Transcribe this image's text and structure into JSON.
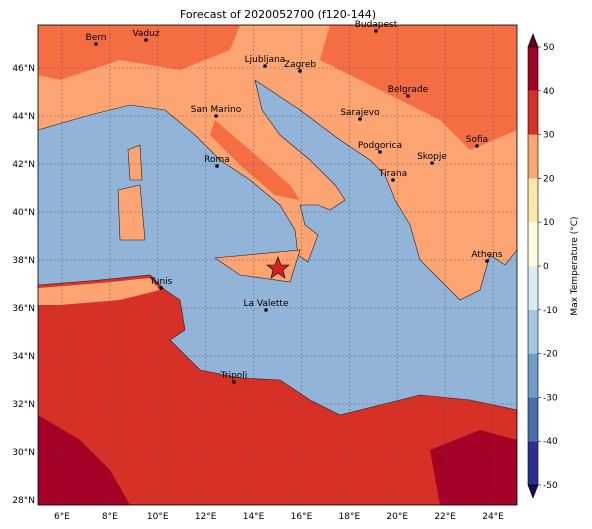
{
  "title": "Forecast of 2020052700 (f120-144)",
  "map": {
    "lon_ticks": [
      "6°E",
      "8°E",
      "10°E",
      "12°E",
      "14°E",
      "16°E",
      "18°E",
      "20°E",
      "22°E",
      "24°E"
    ],
    "lat_ticks": [
      "28°N",
      "30°N",
      "32°N",
      "34°N",
      "36°N",
      "38°N",
      "40°N",
      "42°N",
      "44°N",
      "46°N"
    ],
    "cities": [
      "Bern",
      "Vaduz",
      "Budapest",
      "Ljubljana",
      "Zagreb",
      "Belgrade",
      "San Marino",
      "Sarajevo",
      "Sofia",
      "Podgorica",
      "Skopje",
      "Roma",
      "Tirana",
      "Athens",
      "Tunis",
      "La Valette",
      "Tripoli"
    ]
  },
  "colorbar": {
    "label": "Max Temperature (°C)",
    "ticks": [
      50,
      40,
      30,
      20,
      10,
      0,
      -10,
      -20,
      -30,
      -40,
      -50
    ],
    "colors": [
      "#2c2f8f",
      "#4a6fb0",
      "#6f9cc9",
      "#a3c8e0",
      "#d8ecf4",
      "#fffde0",
      "#fee8a8",
      "#fca472",
      "#d73027",
      "#a50026"
    ],
    "extend_colors": [
      "#0d0f5c",
      "#67001f"
    ]
  }
}
